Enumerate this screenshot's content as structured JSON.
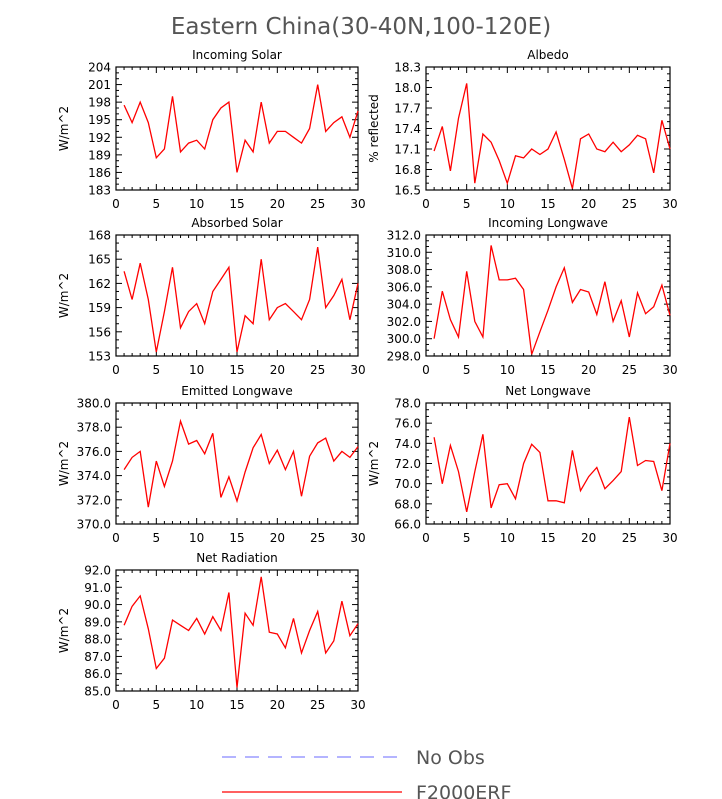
{
  "title": "Eastern China(30-40N,100-120E)",
  "colors": {
    "model": "#ff0000",
    "obs": "#8888ff",
    "axis": "#000000"
  },
  "legend": [
    {
      "label": "No Obs",
      "style": "dashed",
      "color": "#8888ff"
    },
    {
      "label": "F2000ERF",
      "style": "solid",
      "color": "#ff0000"
    }
  ],
  "chart_data": [
    {
      "type": "line",
      "title": "Incoming Solar",
      "ylabel": "W/m^2",
      "xlim": [
        0,
        30
      ],
      "ylim": [
        183,
        204
      ],
      "xticks": [
        0,
        5,
        10,
        15,
        20,
        25,
        30
      ],
      "yticks": [
        183,
        186,
        189,
        192,
        195,
        198,
        201,
        204
      ],
      "ytick_labels": [
        "183",
        "186",
        "189",
        "192",
        "195",
        "198",
        "201",
        "204"
      ],
      "series": [
        {
          "name": "F2000ERF",
          "x": [
            1,
            2,
            3,
            4,
            5,
            6,
            7,
            8,
            9,
            10,
            11,
            12,
            13,
            14,
            15,
            16,
            17,
            18,
            19,
            20,
            21,
            22,
            23,
            24,
            25,
            26,
            27,
            28,
            29,
            30
          ],
          "values": [
            197.5,
            194.5,
            198.0,
            194.5,
            188.5,
            190.0,
            199.0,
            189.5,
            191.0,
            191.5,
            190.0,
            195.0,
            197.0,
            198.0,
            186.0,
            191.5,
            189.5,
            198.0,
            191.0,
            193.0,
            193.0,
            192.0,
            191.0,
            193.5,
            201.0,
            193.0,
            194.5,
            195.5,
            192.0,
            196.5
          ]
        }
      ]
    },
    {
      "type": "line",
      "title": "Albedo",
      "ylabel": "% reflected",
      "xlim": [
        0,
        30
      ],
      "ylim": [
        16.5,
        18.3
      ],
      "xticks": [
        0,
        5,
        10,
        15,
        20,
        25,
        30
      ],
      "yticks": [
        16.5,
        16.8,
        17.1,
        17.4,
        17.7,
        18.0,
        18.3
      ],
      "ytick_labels": [
        "16.5",
        "16.8",
        "17.1",
        "17.4",
        "17.7",
        "18.0",
        "18.3"
      ],
      "series": [
        {
          "name": "F2000ERF",
          "x": [
            1,
            2,
            3,
            4,
            5,
            6,
            7,
            8,
            9,
            10,
            11,
            12,
            13,
            14,
            15,
            16,
            17,
            18,
            19,
            20,
            21,
            22,
            23,
            24,
            25,
            26,
            27,
            28,
            29,
            30
          ],
          "values": [
            17.07,
            17.43,
            16.78,
            17.55,
            18.06,
            16.6,
            17.32,
            17.2,
            16.93,
            16.6,
            17.0,
            16.97,
            17.1,
            17.02,
            17.1,
            17.35,
            16.95,
            16.52,
            17.25,
            17.32,
            17.1,
            17.06,
            17.2,
            17.06,
            17.16,
            17.3,
            17.25,
            16.75,
            17.52,
            17.1
          ]
        }
      ]
    },
    {
      "type": "line",
      "title": "Absorbed Solar",
      "ylabel": "W/m^2",
      "xlim": [
        0,
        30
      ],
      "ylim": [
        153,
        168
      ],
      "xticks": [
        0,
        5,
        10,
        15,
        20,
        25,
        30
      ],
      "yticks": [
        153,
        156,
        159,
        162,
        165,
        168
      ],
      "ytick_labels": [
        "153",
        "156",
        "159",
        "162",
        "165",
        "168"
      ],
      "series": [
        {
          "name": "F2000ERF",
          "x": [
            1,
            2,
            3,
            4,
            5,
            6,
            7,
            8,
            9,
            10,
            11,
            12,
            13,
            14,
            15,
            16,
            17,
            18,
            19,
            20,
            21,
            22,
            23,
            24,
            25,
            26,
            27,
            28,
            29,
            30
          ],
          "values": [
            163.5,
            160.0,
            164.5,
            160.0,
            153.5,
            158.5,
            164.0,
            156.5,
            158.5,
            159.5,
            157.0,
            161.0,
            162.5,
            164.0,
            153.5,
            158.0,
            157.0,
            165.0,
            157.5,
            159.0,
            159.5,
            158.5,
            157.5,
            160.0,
            166.5,
            159.0,
            160.5,
            162.5,
            157.5,
            162.0
          ]
        }
      ]
    },
    {
      "type": "line",
      "title": "Incoming Longwave",
      "ylabel": "",
      "xlim": [
        0,
        30
      ],
      "ylim": [
        298.0,
        312.0
      ],
      "xticks": [
        0,
        5,
        10,
        15,
        20,
        25,
        30
      ],
      "yticks": [
        298,
        300,
        302,
        304,
        306,
        308,
        310,
        312
      ],
      "ytick_labels": [
        "298.0",
        "300.0",
        "302.0",
        "304.0",
        "306.0",
        "308.0",
        "310.0",
        "312.0"
      ],
      "series": [
        {
          "name": "F2000ERF",
          "x": [
            1,
            2,
            3,
            4,
            5,
            6,
            7,
            8,
            9,
            10,
            11,
            12,
            13,
            14,
            15,
            16,
            17,
            18,
            19,
            20,
            21,
            22,
            23,
            24,
            25,
            26,
            27,
            28,
            29,
            30
          ],
          "values": [
            300.0,
            305.5,
            302.2,
            300.2,
            307.8,
            302.0,
            300.2,
            310.8,
            306.8,
            306.8,
            307.0,
            305.7,
            298.2,
            300.8,
            303.3,
            306.0,
            308.2,
            304.2,
            305.7,
            305.4,
            302.8,
            306.6,
            302.0,
            304.4,
            300.2,
            305.3,
            302.9,
            303.7,
            306.2,
            302.7
          ]
        }
      ]
    },
    {
      "type": "line",
      "title": "Emitted Longwave",
      "ylabel": "W/m^2",
      "xlim": [
        0,
        30
      ],
      "ylim": [
        370.0,
        380.0
      ],
      "xticks": [
        0,
        5,
        10,
        15,
        20,
        25,
        30
      ],
      "yticks": [
        370,
        372,
        374,
        376,
        378,
        380
      ],
      "ytick_labels": [
        "370.0",
        "372.0",
        "374.0",
        "376.0",
        "378.0",
        "380.0"
      ],
      "series": [
        {
          "name": "F2000ERF",
          "x": [
            1,
            2,
            3,
            4,
            5,
            6,
            7,
            8,
            9,
            10,
            11,
            12,
            13,
            14,
            15,
            16,
            17,
            18,
            19,
            20,
            21,
            22,
            23,
            24,
            25,
            26,
            27,
            28,
            29,
            30
          ],
          "values": [
            374.5,
            375.5,
            376.0,
            371.4,
            375.2,
            373.1,
            375.2,
            378.5,
            376.6,
            376.9,
            375.8,
            377.5,
            372.2,
            373.9,
            371.9,
            374.3,
            376.3,
            377.4,
            375.0,
            376.1,
            374.5,
            376.0,
            372.3,
            375.6,
            376.7,
            377.1,
            375.2,
            376.0,
            375.5,
            376.4
          ]
        }
      ]
    },
    {
      "type": "line",
      "title": "Net Longwave",
      "ylabel": "W/m^2",
      "xlim": [
        0,
        30
      ],
      "ylim": [
        66.0,
        78.0
      ],
      "xticks": [
        0,
        5,
        10,
        15,
        20,
        25,
        30
      ],
      "yticks": [
        66,
        68,
        70,
        72,
        74,
        76,
        78
      ],
      "ytick_labels": [
        "66.0",
        "68.0",
        "70.0",
        "72.0",
        "74.0",
        "76.0",
        "78.0"
      ],
      "series": [
        {
          "name": "F2000ERF",
          "x": [
            1,
            2,
            3,
            4,
            5,
            6,
            7,
            8,
            9,
            10,
            11,
            12,
            13,
            14,
            15,
            16,
            17,
            18,
            19,
            20,
            21,
            22,
            23,
            24,
            25,
            26,
            27,
            28,
            29,
            30
          ],
          "values": [
            74.6,
            70.0,
            73.8,
            71.2,
            67.2,
            71.2,
            74.9,
            67.6,
            69.9,
            70.0,
            68.5,
            72.0,
            73.9,
            73.1,
            68.3,
            68.3,
            68.1,
            73.3,
            69.3,
            70.7,
            71.6,
            69.5,
            70.3,
            71.2,
            76.6,
            71.8,
            72.3,
            72.2,
            69.3,
            74.0
          ]
        }
      ]
    },
    {
      "type": "line",
      "title": "Net Radiation",
      "ylabel": "W/m^2",
      "xlim": [
        0,
        30
      ],
      "ylim": [
        85.0,
        92.0
      ],
      "xticks": [
        0,
        5,
        10,
        15,
        20,
        25,
        30
      ],
      "yticks": [
        85,
        86,
        87,
        88,
        89,
        90,
        91,
        92
      ],
      "ytick_labels": [
        "85.0",
        "86.0",
        "87.0",
        "88.0",
        "89.0",
        "90.0",
        "91.0",
        "92.0"
      ],
      "series": [
        {
          "name": "F2000ERF",
          "x": [
            1,
            2,
            3,
            4,
            5,
            6,
            7,
            8,
            9,
            10,
            11,
            12,
            13,
            14,
            15,
            16,
            17,
            18,
            19,
            20,
            21,
            22,
            23,
            24,
            25,
            26,
            27,
            28,
            29,
            30
          ],
          "values": [
            88.8,
            89.9,
            90.5,
            88.6,
            86.3,
            86.9,
            89.1,
            88.8,
            88.5,
            89.2,
            88.3,
            89.3,
            88.5,
            90.7,
            85.2,
            89.5,
            88.8,
            91.6,
            88.4,
            88.3,
            87.5,
            89.2,
            87.2,
            88.5,
            89.6,
            87.2,
            87.9,
            90.2,
            88.2,
            88.9
          ]
        }
      ]
    }
  ]
}
